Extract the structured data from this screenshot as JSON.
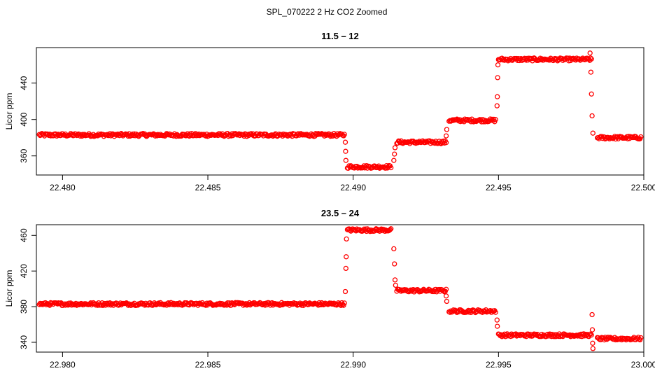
{
  "figure_title": "SPL_070222  2 Hz CO2 Zoomed",
  "colors": {
    "points": "#ff0000",
    "axis": "#000000",
    "background": "#ffffff"
  },
  "chart_data": [
    {
      "type": "scatter",
      "title": "11.5 – 12",
      "xlabel": "",
      "ylabel": "Licor ppm",
      "xlim": [
        22.4791,
        22.5
      ],
      "ylim": [
        339,
        479
      ],
      "xticks": [
        "22.480",
        "22.485",
        "22.490",
        "22.495",
        "22.500"
      ],
      "xtick_values": [
        22.48,
        22.485,
        22.49,
        22.495,
        22.5
      ],
      "yticks": [
        "360",
        "400",
        "440"
      ],
      "ytick_values": [
        360,
        400,
        440
      ],
      "grid": false,
      "legend": "none",
      "marker": "open-circle",
      "plateaus": [
        {
          "x_start": 22.4792,
          "x_end": 22.4897,
          "y": 383
        },
        {
          "x_start": 22.4898,
          "x_end": 22.4913,
          "y": 348
        },
        {
          "x_start": 22.4915,
          "x_end": 22.4932,
          "y": 375
        },
        {
          "x_start": 22.4933,
          "x_end": 22.4949,
          "y": 399
        },
        {
          "x_start": 22.495,
          "x_end": 22.4982,
          "y": 466
        },
        {
          "x_start": 22.4984,
          "x_end": 22.4999,
          "y": 380
        }
      ],
      "transition_points": [
        {
          "x": 22.48973,
          "y": 375
        },
        {
          "x": 22.48974,
          "y": 365
        },
        {
          "x": 22.48975,
          "y": 355
        },
        {
          "x": 22.4914,
          "y": 355
        },
        {
          "x": 22.49142,
          "y": 362
        },
        {
          "x": 22.49144,
          "y": 369
        },
        {
          "x": 22.4932,
          "y": 382
        },
        {
          "x": 22.49322,
          "y": 389
        },
        {
          "x": 22.49495,
          "y": 415
        },
        {
          "x": 22.49496,
          "y": 425
        },
        {
          "x": 22.49497,
          "y": 446
        },
        {
          "x": 22.49498,
          "y": 460
        },
        {
          "x": 22.49815,
          "y": 473
        },
        {
          "x": 22.49818,
          "y": 452
        },
        {
          "x": 22.4982,
          "y": 428
        },
        {
          "x": 22.49822,
          "y": 404
        },
        {
          "x": 22.49825,
          "y": 385
        }
      ]
    },
    {
      "type": "scatter",
      "title": "23.5 – 24",
      "xlabel": "",
      "ylabel": "Licor ppm",
      "xlim": [
        22.9791,
        23.0
      ],
      "ylim": [
        329,
        472
      ],
      "xticks": [
        "22.980",
        "22.985",
        "22.990",
        "22.995",
        "23.000"
      ],
      "xtick_values": [
        22.98,
        22.985,
        22.99,
        22.995,
        23.0
      ],
      "yticks": [
        "340",
        "380",
        "420",
        "460"
      ],
      "ytick_values": [
        340,
        380,
        420,
        460
      ],
      "grid": false,
      "legend": "none",
      "marker": "open-circle",
      "plateaus": [
        {
          "x_start": 22.9792,
          "x_end": 22.9897,
          "y": 383
        },
        {
          "x_start": 22.9898,
          "x_end": 22.9913,
          "y": 466
        },
        {
          "x_start": 22.9915,
          "x_end": 22.9932,
          "y": 398
        },
        {
          "x_start": 22.9933,
          "x_end": 22.9949,
          "y": 375
        },
        {
          "x_start": 22.995,
          "x_end": 22.9982,
          "y": 348
        },
        {
          "x_start": 22.9984,
          "x_end": 22.9999,
          "y": 344
        }
      ],
      "transition_points": [
        {
          "x": 22.98973,
          "y": 397
        },
        {
          "x": 22.98975,
          "y": 423
        },
        {
          "x": 22.98976,
          "y": 436
        },
        {
          "x": 22.98977,
          "y": 456
        },
        {
          "x": 22.9914,
          "y": 445
        },
        {
          "x": 22.99142,
          "y": 428
        },
        {
          "x": 22.99144,
          "y": 410
        },
        {
          "x": 22.99146,
          "y": 404
        },
        {
          "x": 22.9932,
          "y": 392
        },
        {
          "x": 22.99322,
          "y": 386
        },
        {
          "x": 22.99495,
          "y": 365
        },
        {
          "x": 22.99496,
          "y": 358
        },
        {
          "x": 22.99822,
          "y": 371
        },
        {
          "x": 22.99823,
          "y": 354
        },
        {
          "x": 22.99824,
          "y": 339
        },
        {
          "x": 22.99825,
          "y": 333
        }
      ]
    }
  ]
}
